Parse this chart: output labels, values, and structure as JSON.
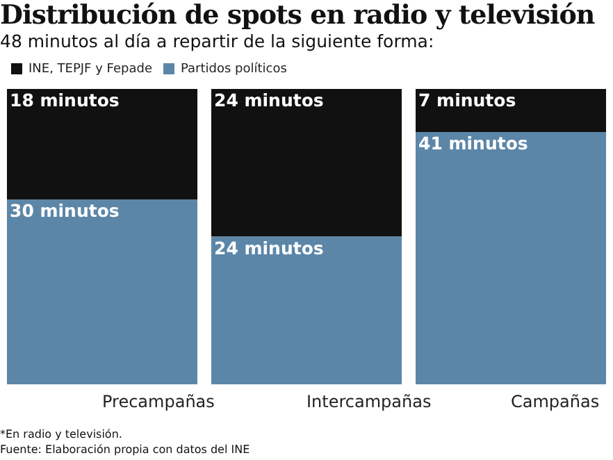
{
  "chart_data": {
    "type": "bar",
    "stacked": true,
    "title": "Distribución de spots en radio y televisión",
    "subtitle": "48 minutos al día a repartir de la siguiente forma:",
    "categories": [
      "Precampañas",
      "Intercampañas",
      "Campañas"
    ],
    "series": [
      {
        "name": "Partidos políticos",
        "color": "#5b86a8",
        "values": [
          30,
          24,
          41
        ],
        "value_labels": [
          "30 minutos",
          "24 minutos",
          "41 minutos"
        ]
      },
      {
        "name": "INE, TEPJF y Fepade",
        "color": "#111111",
        "values": [
          18,
          24,
          7
        ],
        "value_labels": [
          "18 minutos",
          "24 minutos",
          "7 minutos"
        ]
      }
    ],
    "ylim": [
      0,
      48
    ],
    "tick_labels": "x",
    "grid": false,
    "legend": "top left",
    "annotations": [
      "*En radio y televisión.",
      "Fuente: Elaboración propia con datos del INE"
    ]
  }
}
